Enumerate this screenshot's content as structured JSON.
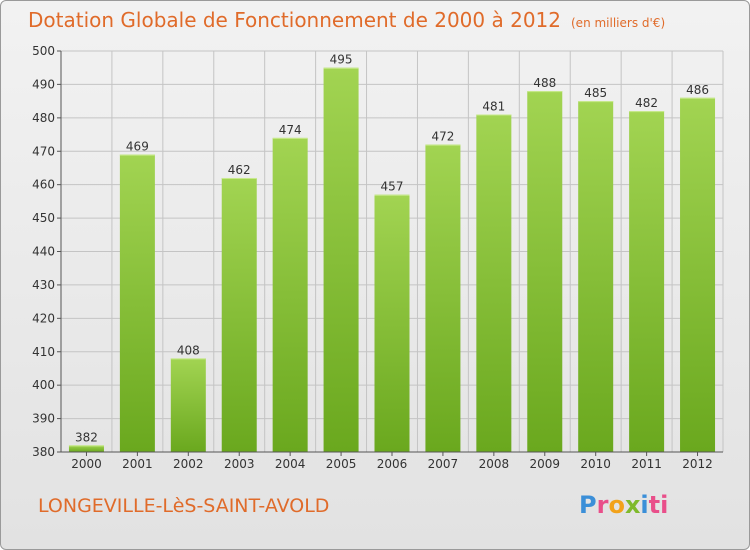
{
  "header": {
    "title": "Dotation Globale de Fonctionnement de 2000 à 2012",
    "unit": "(en milliers d'€)"
  },
  "footer": {
    "commune": "LONGEVILLE-LèS-SAINT-AVOLD",
    "logo_letters": [
      "P",
      "r",
      "o",
      "x",
      "i",
      "ti"
    ]
  },
  "colors": {
    "accent": "#e06b2a",
    "bar_top": "#a2d452",
    "bar_bottom": "#6aa81e",
    "grid": "#c4c4c4"
  },
  "chart_data": {
    "type": "bar",
    "categories": [
      "2000",
      "2001",
      "2002",
      "2003",
      "2004",
      "2005",
      "2006",
      "2007",
      "2008",
      "2009",
      "2010",
      "2011",
      "2012"
    ],
    "values": [
      382,
      469,
      408,
      462,
      474,
      495,
      457,
      472,
      481,
      488,
      485,
      482,
      486
    ],
    "ylim": [
      380,
      500
    ],
    "yticks": [
      380,
      390,
      400,
      410,
      420,
      430,
      440,
      450,
      460,
      470,
      480,
      490,
      500
    ],
    "grid": true,
    "legend": "none"
  }
}
